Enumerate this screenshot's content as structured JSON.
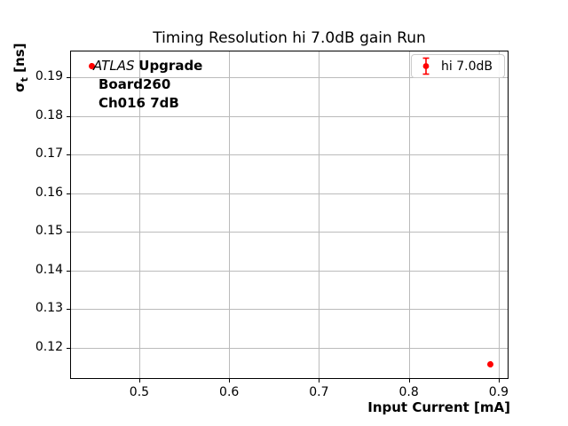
{
  "chart_data": {
    "type": "scatter",
    "title": "Timing Resolution hi 7.0dB gain Run",
    "xlabel": "Input Current [mA]",
    "ylabel_sigma": "σ",
    "ylabel_sub": "t",
    "ylabel_unit": " [ns]",
    "xlim": [
      0.423,
      0.911
    ],
    "ylim": [
      0.1119,
      0.1969
    ],
    "x_ticks": [
      0.5,
      0.6,
      0.7,
      0.8,
      0.9
    ],
    "x_tick_labels": [
      "0.5",
      "0.6",
      "0.7",
      "0.8",
      "0.9"
    ],
    "y_ticks": [
      0.12,
      0.13,
      0.14,
      0.15,
      0.16,
      0.17,
      0.18,
      0.19
    ],
    "y_tick_labels": [
      "0.12",
      "0.13",
      "0.14",
      "0.15",
      "0.16",
      "0.17",
      "0.18",
      "0.19"
    ],
    "grid": true,
    "legend_position": "upper right",
    "series": [
      {
        "name": "hi 7.0dB",
        "color": "#ff0000",
        "marker": "circle-errorbar",
        "x": [
          0.447,
          0.891
        ],
        "y": [
          0.1928,
          0.1156
        ],
        "yerr": [
          0.0008,
          0.0008
        ]
      }
    ],
    "annotation": {
      "line1_italic": "ATLAS",
      "line1_bold": "Upgrade",
      "line2": "Board260",
      "line3": "Ch016 7dB"
    }
  },
  "colors": {
    "marker": "#ff0000",
    "grid": "#bbbbbb",
    "frame": "#000000",
    "legend_border": "#cccccc"
  }
}
